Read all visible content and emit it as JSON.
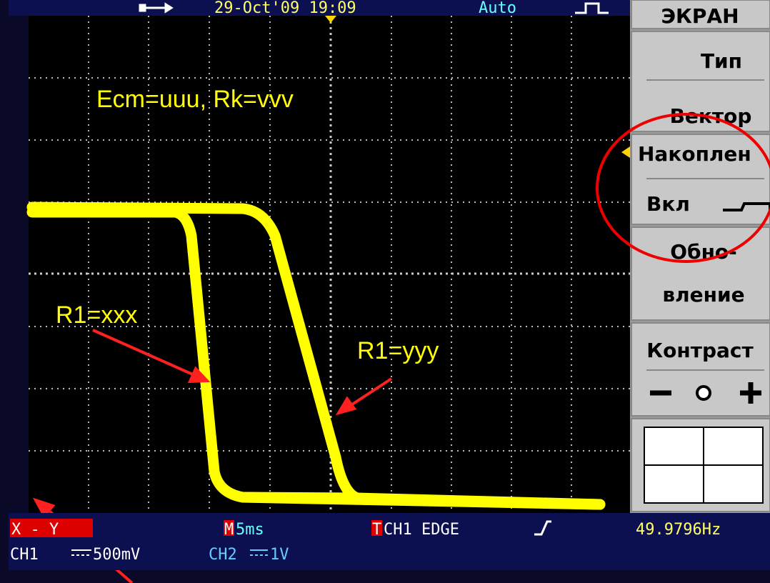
{
  "status_bar": {
    "date_time": "29-Oct'09 19:09",
    "trigger_mode": "Auto"
  },
  "menu": {
    "title": "ЭКРАН",
    "type_label": "Тип",
    "type_value": "Вектор",
    "persist_label": "Накоплен",
    "persist_value": "Вкл",
    "refresh_line1": "Обно-",
    "refresh_line2": "вление",
    "contrast_label": "Контраст"
  },
  "annotations": {
    "caption": "Ecm=uuu, Rk=vvv",
    "left_trace": "R1=xxx",
    "right_trace": "R1=yyy"
  },
  "footer": {
    "mode": "X - Y",
    "timebase_marker": "M",
    "timebase": "5ms",
    "trigger_marker": "T",
    "trigger": "CH1 EDGE",
    "frequency": "49.9796Hz",
    "ch1_label": "CH1",
    "ch1_scale": "500mV",
    "ch2_label": "CH2",
    "ch2_scale": "1V"
  }
}
